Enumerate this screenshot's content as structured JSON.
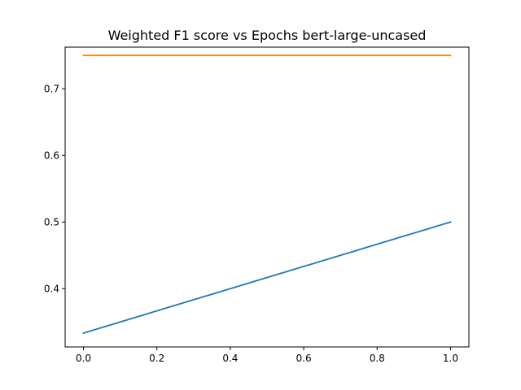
{
  "chart_data": {
    "type": "line",
    "title": "Weighted F1 score vs Epochs bert-large-uncased",
    "xlabel": "",
    "ylabel": "",
    "xlim": [
      -0.05,
      1.05
    ],
    "ylim": [
      0.3125,
      0.7625
    ],
    "x_ticks": [
      0.0,
      0.2,
      0.4,
      0.6,
      0.8,
      1.0
    ],
    "x_tick_labels": [
      "0.0",
      "0.2",
      "0.4",
      "0.6",
      "0.8",
      "1.0"
    ],
    "y_ticks": [
      0.4,
      0.5,
      0.6,
      0.7
    ],
    "y_tick_labels": [
      "0.4",
      "0.5",
      "0.6",
      "0.7"
    ],
    "grid": false,
    "legend": "none",
    "series": [
      {
        "color": "#1f77b4",
        "x": [
          0,
          1
        ],
        "y": [
          0.3333,
          0.5
        ]
      },
      {
        "color": "#ff7f0e",
        "x": [
          0,
          1
        ],
        "y": [
          0.75,
          0.75
        ]
      }
    ]
  }
}
